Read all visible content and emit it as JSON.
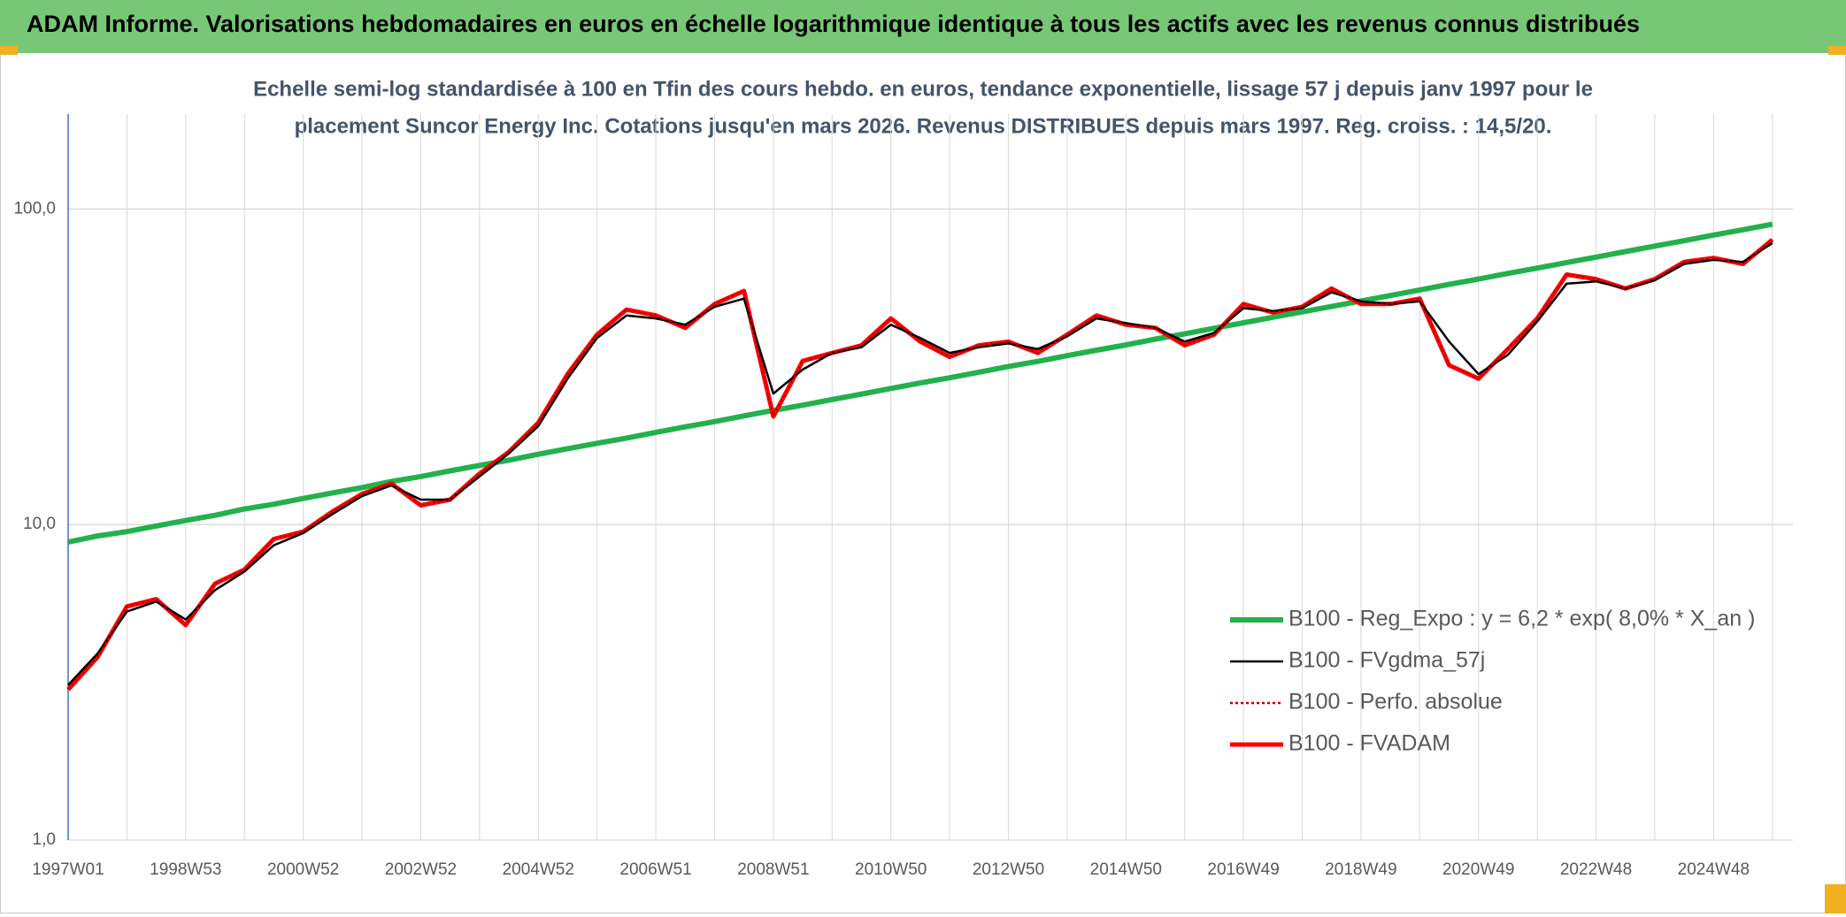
{
  "chart_data": {
    "type": "line",
    "title": "ADAM Informe. Valorisations hebdomadaires en euros en échelle logarithmique identique à tous les actifs avec les revenus connus distribués",
    "subtitle": [
      "Echelle semi-log standardisée à 100 en Tfin des cours hebdo. en euros, tendance exponentielle, lissage 57 j depuis janv 1997 pour le",
      "placement Suncor Energy Inc. Cotations jusqu'en mars 2026. Revenus DISTRIBUES depuis mars 1997. Reg. croiss. : 14,5/20."
    ],
    "categories": [
      "1997W01",
      null,
      null,
      null,
      "1998W53",
      null,
      null,
      null,
      "2000W52",
      null,
      null,
      null,
      "2002W52",
      null,
      null,
      null,
      "2004W52",
      null,
      null,
      null,
      "2006W51",
      null,
      null,
      null,
      "2008W51",
      null,
      null,
      null,
      "2010W50",
      null,
      null,
      null,
      "2012W50",
      null,
      null,
      null,
      "2014W50",
      null,
      null,
      null,
      "2016W49",
      null,
      null,
      null,
      "2018W49",
      null,
      null,
      null,
      "2020W49",
      null,
      null,
      null,
      "2022W48",
      null,
      null,
      null,
      "2024W48",
      null,
      null
    ],
    "log_scale": true,
    "ylim": [
      1,
      200
    ],
    "yticks": [
      {
        "value": 1,
        "label": "1,0"
      },
      {
        "value": 10,
        "label": "10,0"
      },
      {
        "value": 100,
        "label": "100,0"
      }
    ],
    "grid": true,
    "legend": "right",
    "series": [
      {
        "name": "B100 - Reg_Expo : y = 6,2 * exp( 8,0% *  X_an )",
        "color": "#22b14c",
        "style": "solid",
        "values": [
          8.8,
          9.2,
          9.5,
          9.9,
          10.3,
          10.7,
          11.2,
          11.6,
          12.1,
          12.6,
          13.1,
          13.7,
          14.2,
          14.8,
          15.4,
          16.0,
          16.7,
          17.4,
          18.1,
          18.8,
          19.6,
          20.4,
          21.2,
          22.1,
          23.0,
          23.9,
          24.9,
          25.9,
          27.0,
          28.1,
          29.2,
          30.4,
          31.7,
          32.9,
          34.3,
          35.7,
          37.1,
          38.7,
          40.2,
          41.9,
          43.6,
          45.4,
          47.2,
          49.1,
          51.1,
          53.2,
          55.4,
          57.7,
          60.0,
          62.5,
          65.0,
          67.7,
          70.4,
          73.3,
          76.3,
          79.4,
          82.7,
          86.0,
          89.5
        ]
      },
      {
        "name": "B100 - FVgdma_57j",
        "color": "#000000",
        "style": "solid",
        "values": [
          3.1,
          3.9,
          5.3,
          5.7,
          5.0,
          6.2,
          7.1,
          8.6,
          9.4,
          10.8,
          12.3,
          13.3,
          12.0,
          12.0,
          14.2,
          16.8,
          20.5,
          29,
          39,
          46,
          45,
          43,
          49,
          52,
          26,
          31,
          35,
          36.5,
          43,
          39,
          35,
          36.5,
          37.5,
          36,
          39.5,
          45,
          43.5,
          42,
          38,
          40.5,
          48.5,
          47.5,
          48.5,
          54.5,
          51,
          50,
          51,
          38,
          30,
          34.5,
          44,
          58,
          59,
          56,
          59.5,
          67,
          69,
          68,
          78
        ]
      },
      {
        "name": "B100 - Perfo. absolue",
        "color": "#c00000",
        "style": "dotted",
        "values": [
          3.0,
          3.8,
          5.5,
          5.8,
          4.8,
          6.5,
          7.2,
          9.0,
          9.5,
          11.0,
          12.5,
          13.5,
          11.5,
          12.0,
          14.5,
          17.0,
          21.0,
          30.0,
          40.0,
          48.0,
          46.0,
          42.0,
          50.0,
          55.0,
          22.0,
          33.0,
          35.0,
          37.0,
          45.0,
          38.0,
          34.0,
          37.0,
          38.0,
          35.0,
          40.0,
          46.0,
          43.0,
          42.0,
          37.0,
          40.0,
          50.0,
          47.0,
          49.0,
          56.0,
          50.0,
          50.0,
          52.0,
          32.0,
          29.0,
          36.0,
          45.0,
          62.0,
          60.0,
          56.0,
          60.0,
          68.0,
          70.0,
          67.0,
          80.0
        ]
      },
      {
        "name": "B100 - FVADAM",
        "color": "#ff0000",
        "style": "solid",
        "values": [
          3.0,
          3.8,
          5.5,
          5.8,
          4.8,
          6.5,
          7.2,
          9.0,
          9.5,
          11.0,
          12.5,
          13.5,
          11.5,
          12.0,
          14.5,
          17.0,
          21.0,
          30.0,
          40.0,
          48.0,
          46.0,
          42.0,
          50.0,
          55.0,
          22.0,
          33.0,
          35.0,
          37.0,
          45.0,
          38.0,
          34.0,
          37.0,
          38.0,
          35.0,
          40.0,
          46.0,
          43.0,
          42.0,
          37.0,
          40.0,
          50.0,
          47.0,
          49.0,
          56.0,
          50.0,
          50.0,
          52.0,
          32.0,
          29.0,
          36.0,
          45.0,
          62.0,
          60.0,
          56.0,
          60.0,
          68.0,
          70.0,
          67.0,
          80.0
        ]
      }
    ]
  }
}
